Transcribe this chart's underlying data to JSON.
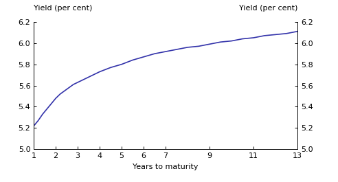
{
  "xlabel": "Years to maturity",
  "ylabel_left": "Yield (per cent)",
  "ylabel_right": "Yield (per cent)",
  "x_ticks": [
    1,
    2,
    3,
    4,
    5,
    6,
    7,
    9,
    11,
    13
  ],
  "ylim": [
    5.0,
    6.2
  ],
  "xlim": [
    1,
    13
  ],
  "yticks": [
    5.0,
    5.2,
    5.4,
    5.6,
    5.8,
    6.0,
    6.2
  ],
  "line_color": "#3333aa",
  "line_width": 1.2,
  "curve_x": [
    1,
    1.2,
    1.4,
    1.6,
    1.8,
    2.0,
    2.2,
    2.4,
    2.6,
    2.8,
    3.0,
    3.2,
    3.4,
    3.6,
    3.8,
    4.0,
    4.5,
    5.0,
    5.5,
    6.0,
    6.5,
    7.0,
    7.5,
    8.0,
    8.5,
    9.0,
    9.5,
    10.0,
    10.5,
    11.0,
    11.5,
    12.0,
    12.5,
    13.0
  ],
  "curve_y": [
    5.22,
    5.27,
    5.33,
    5.38,
    5.43,
    5.48,
    5.52,
    5.55,
    5.58,
    5.61,
    5.63,
    5.65,
    5.67,
    5.69,
    5.71,
    5.73,
    5.77,
    5.8,
    5.84,
    5.87,
    5.9,
    5.92,
    5.94,
    5.96,
    5.97,
    5.99,
    6.01,
    6.02,
    6.04,
    6.05,
    6.07,
    6.08,
    6.09,
    6.11
  ],
  "background_color": "#ffffff",
  "tick_fontsize": 8,
  "label_fontsize": 8
}
